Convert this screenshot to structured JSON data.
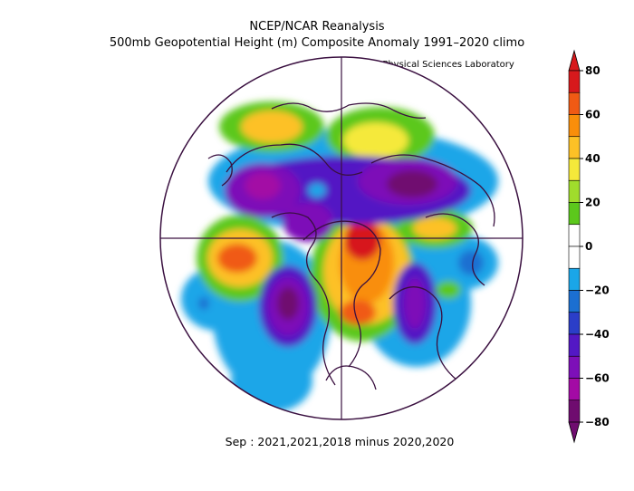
{
  "title_line1": "NCEP/NCAR Reanalysis",
  "title_line2": "500mb Geopotential Height (m) Composite Anomaly 1991–2020 climo",
  "credit": "NOAA Physical Sciences Laboratory",
  "caption": "Sep : 2021,2021,2018 minus 2020,2020",
  "colorbar": {
    "ticks": [
      "80",
      "60",
      "40",
      "20",
      "0",
      "−20",
      "−40",
      "−60",
      "−80"
    ],
    "colors": [
      "#d7191c",
      "#f05a14",
      "#f98e0a",
      "#fdc126",
      "#f5e93a",
      "#a0dc2c",
      "#5cc81c",
      "#ffffff",
      "#ffffff",
      "#1aa6e8",
      "#1b6fd1",
      "#2b3ec8",
      "#5318c4",
      "#7d0fb8",
      "#a30aa5",
      "#6f0c6f"
    ]
  }
}
